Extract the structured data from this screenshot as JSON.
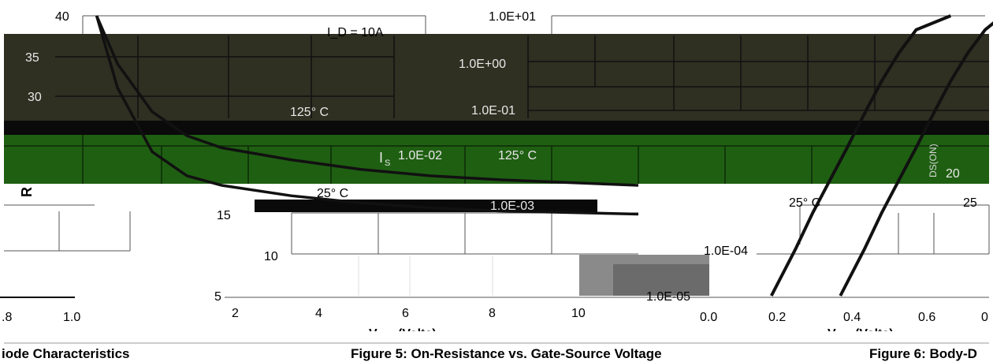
{
  "chart_data": [
    {
      "type": "line",
      "title": "",
      "caption": "iode Characteristics",
      "ylabel": "R",
      "ylabel_sub": "",
      "xlabel": "",
      "x_ticks": [
        ".8",
        "1.0"
      ],
      "y_ticks": [
        "40",
        "35",
        "30",
        "25",
        "20",
        "15",
        "10",
        "5"
      ],
      "annotations": [
        "I_D = 10A",
        "125° C",
        "25° C"
      ],
      "series": [
        {
          "label_ref": "125° C",
          "x": [
            2.2,
            2.5,
            3,
            3.5,
            4,
            5,
            6,
            7,
            8,
            10
          ],
          "y": [
            40,
            34,
            28,
            25,
            23.5,
            22,
            20.8,
            20,
            19.5,
            18.8
          ]
        },
        {
          "label_ref": "25° C",
          "x": [
            2.2,
            2.5,
            3,
            3.5,
            4,
            5,
            6,
            7,
            8,
            10
          ],
          "y": [
            40,
            31,
            23,
            20,
            18.8,
            17.5,
            16.6,
            16,
            15.6,
            15.2
          ]
        }
      ]
    },
    {
      "type": "line",
      "title": "",
      "caption": "Figure 5: On-Resistance vs. Gate-Source Voltage",
      "xlabel": "V",
      "xlabel_sub": "",
      "xlabel_unit": "(Volts)",
      "ylabel": "I",
      "ylabel_sub": "S",
      "y_scale": "log",
      "x_ticks": [
        "2",
        "4",
        "6",
        "8",
        "10",
        "0.0",
        "0.2",
        "0.4",
        "0.6",
        "0"
      ],
      "y_ticks": [
        "1.0E+01",
        "1.0E+00",
        "1.0E-01",
        "1.0E-02",
        "1.0E-03",
        "1.0E-04",
        "1.0E-05"
      ],
      "annotations": [
        "125° C",
        "25° C"
      ],
      "series": [
        {
          "label_ref": "125° C",
          "x": [
            0.18,
            0.25,
            0.3,
            0.35,
            0.4,
            0.45,
            0.5,
            0.55,
            0.6,
            0.7
          ],
          "y": [
            1e-05,
            0.0001,
            0.0006,
            0.003,
            0.015,
            0.08,
            0.4,
            1.6,
            5,
            10
          ]
        },
        {
          "label_ref": "25° C",
          "x": [
            0.38,
            0.45,
            0.5,
            0.55,
            0.6,
            0.65,
            0.7,
            0.75,
            0.8,
            0.85
          ],
          "y": [
            1e-05,
            0.0001,
            0.0006,
            0.003,
            0.015,
            0.08,
            0.4,
            1.6,
            5,
            10
          ]
        }
      ]
    },
    {
      "type": "line",
      "title": "",
      "caption": "Figure 6: Body-D",
      "xlabel": "V",
      "xlabel_unit": "(Volts)",
      "ylabel": "R",
      "ylabel_sub": "DS(ON)",
      "y_ticks": [
        "20",
        "25"
      ],
      "annotations": [
        "25° C"
      ]
    }
  ]
}
